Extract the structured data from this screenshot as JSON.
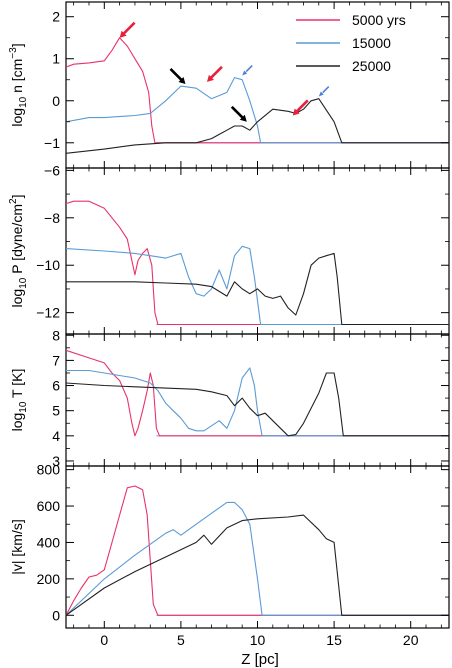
{
  "colors": {
    "s5000": "#e8336a",
    "s15000": "#5b9bd5",
    "s25000": "#222222",
    "floor": "#8c8ce6",
    "axis": "#000000",
    "bg": "#ffffff",
    "arrow_red": "#e8203c",
    "arrow_black": "#000000",
    "arrow_blue": "#4f7fd8"
  },
  "chart_data": [
    {
      "type": "line",
      "xlabel": "",
      "ylabel": "log10 n [cm^-3]",
      "ylabel_parts": {
        "pre": "log",
        "sub": "10",
        "mid": " n [cm",
        "sup": "−3",
        "post": "]"
      },
      "xlim": [
        -2.5,
        22.5
      ],
      "ylim": [
        -1.6,
        2.35
      ],
      "yticks": [
        -1,
        0,
        1,
        2
      ],
      "ytick_labels": [
        "−1",
        "0",
        "1",
        "2"
      ],
      "xticks": [
        0,
        5,
        10,
        15,
        20
      ],
      "legend": {
        "placement": "top-right",
        "entries": [
          "5000 yrs",
          "15000",
          "25000"
        ]
      },
      "series": [
        {
          "name": "5000 yrs",
          "color_key": "s5000",
          "x": [
            -2.5,
            -2,
            -1,
            0,
            0.5,
            1,
            1.5,
            2,
            2.5,
            2.9,
            3.1,
            3.3,
            3.5,
            22.5
          ],
          "y": [
            0.8,
            0.87,
            0.9,
            0.95,
            1.2,
            1.5,
            1.3,
            1.0,
            0.7,
            0.2,
            -0.6,
            -1.0,
            -1.0,
            -1.0
          ]
        },
        {
          "name": "15000",
          "color_key": "s15000",
          "x": [
            -2.5,
            -1,
            0,
            2,
            3,
            4,
            5,
            6,
            7,
            8,
            8.5,
            9,
            9.5,
            10,
            10.2,
            22.5
          ],
          "y": [
            -0.5,
            -0.4,
            -0.4,
            -0.35,
            -0.3,
            0.0,
            0.35,
            0.3,
            0.05,
            0.2,
            0.55,
            0.5,
            0.0,
            -0.6,
            -1.0,
            -1.0
          ]
        },
        {
          "name": "25000",
          "color_key": "s25000",
          "x": [
            -2.5,
            0,
            2,
            4,
            6,
            7,
            7.5,
            8,
            8.5,
            9,
            9.5,
            10,
            11,
            12,
            12.5,
            13,
            13.5,
            14,
            15,
            15.5,
            22.5
          ],
          "y": [
            -1.25,
            -1.15,
            -1.05,
            -1.0,
            -1.0,
            -0.9,
            -0.8,
            -0.7,
            -0.6,
            -0.6,
            -0.7,
            -0.5,
            -0.2,
            -0.25,
            -0.3,
            -0.2,
            0.0,
            0.05,
            -0.5,
            -1.0,
            -1.0
          ]
        }
      ],
      "annotations": [
        {
          "type": "arrow",
          "color_key": "arrow_red",
          "at": [
            1.0,
            1.5
          ]
        },
        {
          "type": "arrow",
          "color_key": "arrow_black",
          "at": [
            5.3,
            0.4
          ]
        },
        {
          "type": "arrow",
          "color_key": "arrow_red",
          "at": [
            6.7,
            0.45
          ]
        },
        {
          "type": "arrow",
          "color_key": "arrow_blue",
          "at": [
            9.0,
            0.6
          ]
        },
        {
          "type": "arrow",
          "color_key": "arrow_black",
          "at": [
            9.3,
            -0.5
          ]
        },
        {
          "type": "arrow",
          "color_key": "arrow_red",
          "at": [
            12.3,
            -0.35
          ]
        },
        {
          "type": "arrow",
          "color_key": "arrow_blue",
          "at": [
            14.0,
            0.1
          ]
        }
      ]
    },
    {
      "type": "line",
      "xlabel": "",
      "ylabel": "log10 P [dyne/cm^2]",
      "ylabel_parts": {
        "pre": "log",
        "sub": "10",
        "mid": " P [dyne/cm",
        "sup": "2",
        "post": "]"
      },
      "xlim": [
        -2.5,
        22.5
      ],
      "ylim": [
        -12.9,
        -5.9
      ],
      "yticks": [
        -12,
        -10,
        -8,
        -6
      ],
      "ytick_labels": [
        "−12",
        "−10",
        "−8",
        "−6"
      ],
      "xticks": [
        0,
        5,
        10,
        15,
        20
      ],
      "series": [
        {
          "name": "5000 yrs",
          "color_key": "s5000",
          "x": [
            -2.5,
            -2,
            -1,
            0,
            0.5,
            1,
            1.5,
            2,
            2.2,
            2.5,
            2.8,
            3.1,
            3.3,
            3.5,
            22.5
          ],
          "y": [
            -7.4,
            -7.3,
            -7.3,
            -7.6,
            -8.0,
            -8.4,
            -8.9,
            -10.4,
            -9.8,
            -9.5,
            -9.3,
            -10.0,
            -12.0,
            -12.5,
            -12.5
          ]
        },
        {
          "name": "15000",
          "color_key": "s15000",
          "x": [
            -2.5,
            0,
            2,
            3,
            4,
            5,
            5.5,
            6,
            6.5,
            7,
            7.5,
            8,
            8.5,
            9,
            9.5,
            9.8,
            10.2,
            22.5
          ],
          "y": [
            -9.3,
            -9.4,
            -9.5,
            -9.6,
            -9.7,
            -9.5,
            -10.5,
            -11.2,
            -11.3,
            -11.0,
            -10.2,
            -11.0,
            -9.6,
            -9.2,
            -9.3,
            -10.5,
            -12.5,
            -12.5
          ]
        },
        {
          "name": "25000",
          "color_key": "s25000",
          "x": [
            -2.5,
            0,
            2,
            4,
            6,
            7,
            8,
            8.5,
            9,
            9.5,
            10,
            10.5,
            11,
            11.5,
            12,
            12.5,
            13,
            13.5,
            14,
            14.5,
            15,
            15.2,
            15.5,
            22.5
          ],
          "y": [
            -10.7,
            -10.7,
            -10.7,
            -10.75,
            -10.8,
            -10.9,
            -11.3,
            -10.7,
            -11.0,
            -11.2,
            -11.0,
            -11.3,
            -11.4,
            -11.3,
            -11.8,
            -12.1,
            -11.2,
            -10.0,
            -9.7,
            -9.6,
            -9.5,
            -10.5,
            -12.5,
            -12.5
          ]
        }
      ]
    },
    {
      "type": "line",
      "xlabel": "",
      "ylabel": "log10 T [K]",
      "ylabel_parts": {
        "pre": "log",
        "sub": "10",
        "mid": " T [K]",
        "sup": "",
        "post": ""
      },
      "xlim": [
        -2.5,
        22.5
      ],
      "ylim": [
        2.8,
        8.05
      ],
      "yticks": [
        3,
        4,
        5,
        6,
        7,
        8
      ],
      "ytick_labels": [
        "3",
        "4",
        "5",
        "6",
        "7",
        "8"
      ],
      "xticks": [
        0,
        5,
        10,
        15,
        20
      ],
      "series": [
        {
          "name": "5000 yrs",
          "color_key": "s5000",
          "x": [
            -2.5,
            -1,
            0,
            0.5,
            1,
            1.5,
            1.8,
            2.0,
            2.2,
            2.5,
            2.8,
            3.0,
            3.2,
            3.4,
            3.6,
            22.5
          ],
          "y": [
            7.4,
            7.1,
            6.9,
            6.5,
            6.2,
            5.5,
            4.5,
            4.0,
            4.3,
            5.0,
            5.8,
            6.5,
            6.0,
            4.3,
            4.0,
            4.0
          ]
        },
        {
          "name": "15000",
          "color_key": "s15000",
          "x": [
            -2.5,
            -1,
            0,
            1,
            2,
            3,
            3.5,
            4,
            4.5,
            5,
            5.5,
            6,
            6.5,
            7,
            7.5,
            8,
            8.5,
            9,
            9.5,
            9.8,
            10.0,
            10.3,
            22.5
          ],
          "y": [
            6.6,
            6.6,
            6.5,
            6.4,
            6.3,
            6.1,
            5.8,
            5.3,
            5.0,
            4.7,
            4.3,
            4.2,
            4.2,
            4.4,
            4.6,
            4.3,
            5.0,
            6.3,
            6.7,
            6.0,
            5.0,
            4.0,
            4.0
          ]
        },
        {
          "name": "25000",
          "color_key": "s25000",
          "x": [
            -2.5,
            0,
            2,
            4,
            6,
            7,
            8,
            8.5,
            9,
            9.5,
            10,
            10.5,
            11,
            11.5,
            12,
            12.5,
            13,
            13.5,
            14,
            14.5,
            15,
            15.3,
            15.6,
            22.5
          ],
          "y": [
            6.1,
            6.0,
            5.95,
            5.9,
            5.85,
            5.75,
            5.6,
            5.2,
            5.5,
            5.1,
            4.8,
            4.9,
            4.6,
            4.3,
            4.0,
            4.05,
            4.5,
            5.1,
            5.7,
            6.5,
            6.5,
            5.5,
            4.0,
            4.0
          ]
        }
      ]
    },
    {
      "type": "line",
      "xlabel": "Z [pc]",
      "ylabel": "|v| [km/s]",
      "ylabel_parts": {
        "pre": "|v| [km/s]",
        "sub": "",
        "mid": "",
        "sup": "",
        "post": ""
      },
      "xlim": [
        -2.5,
        22.5
      ],
      "ylim": [
        -70,
        820
      ],
      "yticks": [
        0,
        200,
        400,
        600,
        800
      ],
      "ytick_labels": [
        "0",
        "200",
        "400",
        "600",
        "800"
      ],
      "xticks": [
        0,
        5,
        10,
        15,
        20
      ],
      "xtick_labels": [
        "0",
        "5",
        "10",
        "15",
        "20"
      ],
      "series": [
        {
          "name": "5000 yrs",
          "color_key": "s5000",
          "x": [
            -2.5,
            -2,
            -1.5,
            -1,
            -0.5,
            0,
            0.5,
            1,
            1.5,
            2,
            2.5,
            2.8,
            3.0,
            3.2,
            3.5,
            22.5
          ],
          "y": [
            0,
            80,
            150,
            210,
            220,
            250,
            400,
            550,
            700,
            710,
            690,
            550,
            300,
            60,
            0,
            0
          ]
        },
        {
          "name": "15000",
          "color_key": "s15000",
          "x": [
            -2.5,
            0,
            2,
            4,
            4.5,
            5,
            5.5,
            6,
            7,
            8,
            8.5,
            9,
            9.5,
            10,
            10.3,
            22.5
          ],
          "y": [
            0,
            200,
            330,
            450,
            470,
            440,
            470,
            500,
            560,
            620,
            620,
            580,
            500,
            200,
            0,
            0
          ]
        },
        {
          "name": "25000",
          "color_key": "s25000",
          "x": [
            -2.5,
            0,
            2,
            4,
            6,
            6.5,
            7,
            8,
            9,
            10,
            12,
            13,
            14,
            14.5,
            15,
            15.5,
            22.5
          ],
          "y": [
            0,
            150,
            240,
            320,
            400,
            440,
            390,
            480,
            520,
            530,
            540,
            550,
            470,
            420,
            400,
            0,
            0
          ]
        }
      ]
    }
  ]
}
